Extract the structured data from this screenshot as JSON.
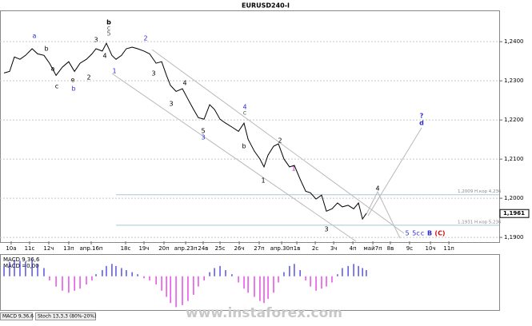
{
  "chart_data": {
    "type": "line",
    "title": "EURUSD240-I",
    "series": [
      {
        "name": "EURUSD",
        "color": "#000000",
        "x": [
          0.21,
          0.5,
          0.75,
          1.04,
          1.33,
          1.67,
          1.96,
          2.29,
          2.58,
          2.92,
          3.25,
          3.58,
          3.88,
          4.17,
          4.5,
          4.79,
          5,
          5.33,
          5.54,
          5.83,
          6.04,
          6.33,
          6.58,
          6.88,
          7.17,
          7.5,
          7.79,
          8.13,
          8.42,
          8.67,
          8.88,
          9.17,
          9.5,
          9.79,
          10.08,
          10.33,
          10.63,
          10.92,
          11.17,
          11.46,
          11.75,
          12.08,
          12.42,
          12.71,
          12.92,
          13.25,
          13.54,
          13.75,
          13.96,
          14.25,
          14.5,
          14.79,
          15.08,
          15.33,
          15.63,
          15.92,
          16.17,
          16.46,
          16.75,
          17,
          17.29,
          17.58,
          17.83,
          18.13,
          18.42,
          18.67,
          18.88,
          19.08
        ],
        "values": [
          1.232,
          1.2324,
          1.2361,
          1.2355,
          1.2365,
          1.2382,
          1.2369,
          1.2365,
          1.2345,
          1.2314,
          1.2335,
          1.2349,
          1.2324,
          1.2345,
          1.2355,
          1.2369,
          1.2382,
          1.2376,
          1.2396,
          1.2365,
          1.2355,
          1.2365,
          1.2382,
          1.2386,
          1.2382,
          1.2376,
          1.2369,
          1.2345,
          1.2349,
          1.2314,
          1.2288,
          1.2273,
          1.228,
          1.2253,
          1.2227,
          1.2206,
          1.2202,
          1.2239,
          1.2227,
          1.2202,
          1.2192,
          1.2182,
          1.2171,
          1.2192,
          1.2151,
          1.212,
          1.21,
          1.208,
          1.211,
          1.2133,
          1.2139,
          1.21,
          1.208,
          1.2084,
          1.2049,
          1.2018,
          1.2014,
          1.1998,
          1.2008,
          1.1967,
          1.1973,
          1.1988,
          1.1978,
          1.1982,
          1.1973,
          1.1988,
          1.1947,
          1.1961
        ]
      }
    ],
    "last_label": "1,1961",
    "xlim": [
      0,
      26
    ],
    "xticks": [
      {
        "value": 0.58,
        "label": "10a"
      },
      {
        "value": 1.54,
        "label": "11c"
      },
      {
        "value": 2.54,
        "label": "12ч"
      },
      {
        "value": 3.58,
        "label": "13п"
      },
      {
        "value": 4.75,
        "label": "апр.16п"
      },
      {
        "value": 6.54,
        "label": "18c"
      },
      {
        "value": 7.5,
        "label": "19ч"
      },
      {
        "value": 8.54,
        "label": "20п"
      },
      {
        "value": 9.67,
        "label": "апр.23п"
      },
      {
        "value": 10.58,
        "label": "24в"
      },
      {
        "value": 11.46,
        "label": "25c"
      },
      {
        "value": 12.46,
        "label": "26ч"
      },
      {
        "value": 13.5,
        "label": "27п"
      },
      {
        "value": 14.67,
        "label": "апр.30п"
      },
      {
        "value": 15.46,
        "label": "1в"
      },
      {
        "value": 16.42,
        "label": "2c"
      },
      {
        "value": 17.38,
        "label": "3ч"
      },
      {
        "value": 18.38,
        "label": "4п"
      },
      {
        "value": 19.42,
        "label": "май7п"
      },
      {
        "value": 20.33,
        "label": "8в"
      },
      {
        "value": 21.33,
        "label": "9c"
      },
      {
        "value": 22.42,
        "label": "10ч"
      },
      {
        "value": 23.38,
        "label": "11п"
      }
    ],
    "ylim": [
      1.189,
      1.248
    ],
    "yticks": [
      {
        "value": 1.24,
        "label": "1,2400"
      },
      {
        "value": 1.23,
        "label": "1,2300"
      },
      {
        "value": 1.22,
        "label": "1,2200"
      },
      {
        "value": 1.21,
        "label": "1,2100"
      },
      {
        "value": 1.2,
        "label": "1,2000"
      },
      {
        "value": 1.19,
        "label": "1,1900"
      }
    ],
    "grid": true,
    "levels": [
      {
        "value": 1.2009,
        "label": "1,2009 Н.кор 4,236"
      },
      {
        "value": 1.1931,
        "label": "1,1931 Н.кор 5,236"
      }
    ],
    "annotations": [
      "b",
      "c",
      "5",
      "3",
      "4",
      "a",
      "b",
      "a",
      "c",
      "e",
      "b",
      "2",
      "1",
      "2",
      "3",
      "4",
      "3",
      "5",
      "3",
      "4",
      "c",
      "b",
      "1",
      "2",
      "1",
      "3",
      "4",
      "?",
      "d",
      "5",
      "5c",
      "c",
      "B",
      "(C)"
    ],
    "macd": {
      "title": "MACD 9,36,6",
      "value_text": "MACD =0,00",
      "ylim": [
        -32,
        20
      ],
      "pos_color": "#2b2bd6",
      "neg_color": "#e020e0",
      "values": [
        10,
        14,
        16,
        15,
        14,
        16,
        12,
        8,
        -4,
        -10,
        -14,
        -16,
        -14,
        -12,
        -8,
        -4,
        2,
        6,
        10,
        12,
        10,
        8,
        6,
        4,
        2,
        -2,
        -4,
        -8,
        -14,
        -20,
        -26,
        -30,
        -28,
        -24,
        -18,
        -10,
        -4,
        4,
        8,
        10,
        6,
        2,
        -6,
        -12,
        -16,
        -20,
        -24,
        -26,
        -22,
        -16,
        -6,
        4,
        10,
        12,
        6,
        -4,
        -10,
        -14,
        -12,
        -10,
        -6,
        2,
        8,
        10,
        12,
        10,
        8,
        6
      ]
    },
    "tabs": [
      "MACD 9,36,6",
      "Stoch 13,3,3 (80%-20%)"
    ],
    "watermark": "www.instaforex.com"
  }
}
